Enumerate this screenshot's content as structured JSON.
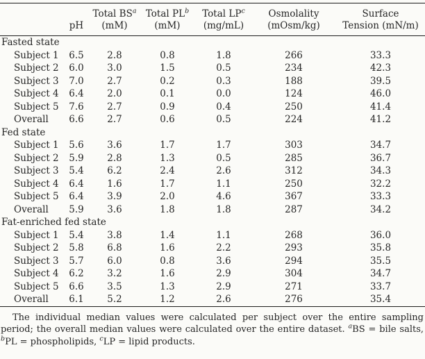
{
  "page": {
    "background_color": "#fbfbf8",
    "text_color": "#242424",
    "rule_color": "#1c1c1c"
  },
  "table": {
    "header": {
      "columns": [
        {
          "line1": "",
          "sup": "",
          "line2": "pH"
        },
        {
          "line1": "Total BS",
          "sup": "a",
          "line2": "(mM)"
        },
        {
          "line1": "Total PL",
          "sup": "b",
          "line2": "(mM)"
        },
        {
          "line1": "Total LP",
          "sup": "c",
          "line2": "(mg/mL)"
        },
        {
          "line1": "Osmolality",
          "sup": "",
          "line2": "(mOsm/kg)"
        },
        {
          "line1": "Surface",
          "sup": "",
          "line2": "Tension (mN/m)"
        }
      ]
    },
    "groups": [
      {
        "label": "Fasted state",
        "rows": [
          {
            "label": "Subject 1",
            "values": [
              "6.5",
              "2.8",
              "0.8",
              "1.8",
              "266",
              "33.3"
            ]
          },
          {
            "label": "Subject 2",
            "values": [
              "6.0",
              "3.0",
              "1.5",
              "0.5",
              "234",
              "42.3"
            ]
          },
          {
            "label": "Subject 3",
            "values": [
              "7.0",
              "2.7",
              "0.2",
              "0.3",
              "188",
              "39.5"
            ]
          },
          {
            "label": "Subject 4",
            "values": [
              "6.4",
              "2.0",
              "0.1",
              "0.0",
              "124",
              "46.0"
            ]
          },
          {
            "label": "Subject 5",
            "values": [
              "7.6",
              "2.7",
              "0.9",
              "0.4",
              "250",
              "41.4"
            ]
          },
          {
            "label": "Overall",
            "values": [
              "6.6",
              "2.7",
              "0.6",
              "0.5",
              "224",
              "41.2"
            ]
          }
        ]
      },
      {
        "label": "Fed state",
        "rows": [
          {
            "label": "Subject 1",
            "values": [
              "5.6",
              "3.6",
              "1.7",
              "1.7",
              "303",
              "34.7"
            ]
          },
          {
            "label": "Subject 2",
            "values": [
              "5.9",
              "2.8",
              "1.3",
              "0.5",
              "285",
              "36.7"
            ]
          },
          {
            "label": "Subject 3",
            "values": [
              "5.4",
              "6.2",
              "2.4",
              "2.6",
              "312",
              "34.3"
            ]
          },
          {
            "label": "Subject 4",
            "values": [
              "6.4",
              "1.6",
              "1.7",
              "1.1",
              "250",
              "32.2"
            ]
          },
          {
            "label": "Subject 5",
            "values": [
              "6.4",
              "3.9",
              "2.0",
              "4.6",
              "367",
              "33.3"
            ]
          },
          {
            "label": "Overall",
            "values": [
              "5.9",
              "3.6",
              "1.8",
              "1.8",
              "287",
              "34.2"
            ]
          }
        ]
      },
      {
        "label": "Fat-enriched fed state",
        "rows": [
          {
            "label": "Subject 1",
            "values": [
              "5.4",
              "3.8",
              "1.4",
              "1.1",
              "268",
              "36.0"
            ]
          },
          {
            "label": "Subject 2",
            "values": [
              "5.8",
              "6.8",
              "1.6",
              "2.2",
              "293",
              "35.8"
            ]
          },
          {
            "label": "Subject 3",
            "values": [
              "5.7",
              "6.0",
              "0.8",
              "3.6",
              "294",
              "35.5"
            ]
          },
          {
            "label": "Subject 4",
            "values": [
              "6.2",
              "3.2",
              "1.6",
              "2.9",
              "304",
              "34.7"
            ]
          },
          {
            "label": "Subject 5",
            "values": [
              "6.6",
              "3.5",
              "1.3",
              "2.9",
              "271",
              "33.7"
            ]
          },
          {
            "label": "Overall",
            "values": [
              "6.1",
              "5.2",
              "1.2",
              "2.6",
              "276",
              "35.4"
            ]
          }
        ]
      }
    ]
  },
  "footnote": {
    "body": "The individual median values were calculated per subject over the entire sampling period; the overall median values were calculated over the entire dataset.",
    "definitions": [
      {
        "sup": "a",
        "text": "BS = bile salts, "
      },
      {
        "sup": "b",
        "text": "PL = phospholipids, "
      },
      {
        "sup": "c",
        "text": "LP = lipid products."
      }
    ]
  }
}
